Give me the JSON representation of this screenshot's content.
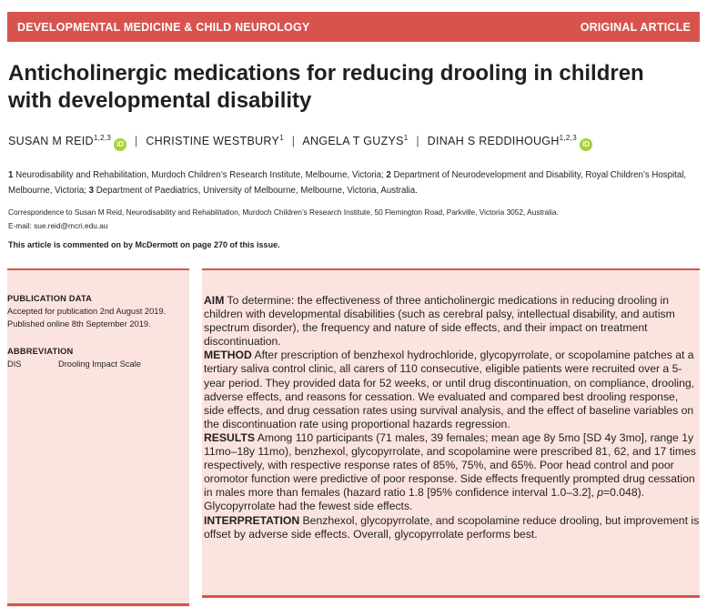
{
  "banner": {
    "journal": "DEVELOPMENTAL MEDICINE & CHILD NEUROLOGY",
    "article_type": "ORIGINAL ARTICLE"
  },
  "title": "Anticholinergic medications for reducing drooling in children with developmental disability",
  "authors": [
    {
      "name": "SUSAN M REID",
      "sup": "1,2,3",
      "orcid": true
    },
    {
      "name": "CHRISTINE WESTBURY",
      "sup": "1",
      "orcid": false
    },
    {
      "name": "ANGELA T GUZYS",
      "sup": "1",
      "orcid": false
    },
    {
      "name": "DINAH S REDDIHOUGH",
      "sup": "1,2,3",
      "orcid": true
    }
  ],
  "orcid_label": "iD",
  "affiliations": [
    {
      "num": "1",
      "text": " Neurodisability and Rehabilitation, Murdoch Children’s Research Institute, Melbourne, Victoria; "
    },
    {
      "num": "2",
      "text": " Department of Neurodevelopment and Disability, Royal Children’s Hospital, Melbourne, Victoria; "
    },
    {
      "num": "3",
      "text": " Department of Paediatrics, University of Melbourne, Melbourne, Victoria, Australia."
    }
  ],
  "correspondence": "Correspondence to Susan M Reid, Neurodisability and Rehabilitation, Murdoch Children’s Research Institute, 50 Flemington Road, Parkville, Victoria 3052, Australia.",
  "email": "E-mail: sue.reid@mcri.edu.au",
  "comment_note": "This article is commented on by McDermott on page 270 of this issue.",
  "sidebar": {
    "publication_heading": "PUBLICATION DATA",
    "accepted": "Accepted for publication 2nd August 2019.",
    "published": "Published online 8th September 2019.",
    "abbreviation_heading": "ABBREVIATION",
    "abbreviation_key": "DIS",
    "abbreviation_value": "Drooling Impact Scale"
  },
  "abstract": {
    "aim_label": "AIM",
    "aim": " To determine: the effectiveness of three anticholinergic medications in reducing drooling in children with developmental disabilities (such as cerebral palsy, intellectual disability, and autism spectrum disorder), the frequency and nature of side effects, and their impact on treatment discontinuation.",
    "method_label": "METHOD",
    "method": " After prescription of benzhexol hydrochloride, glycopyrrolate, or scopolamine patches at a tertiary saliva control clinic, all carers of 110 consecutive, eligible patients were recruited over a 5-year period. They provided data for 52 weeks, or until drug discontinuation, on compliance, drooling, adverse effects, and reasons for cessation. We evaluated and compared best drooling response, side effects, and drug cessation rates using survival analysis, and the effect of baseline variables on the discontinuation rate using proportional hazards regression.",
    "results_label": "RESULTS",
    "results_a": " Among 110 participants (71 males, 39 females; mean age 8y 5mo [SD 4y 3mo], range 1y 11mo–18y 11mo), benzhexol, glycopyrrolate, and scopolamine were prescribed 81, 62, and 17 times respectively, with respective response rates of 85%, 75%, and 65%. Poor head control and poor oromotor function were predictive of poor response. Side effects frequently prompted drug cessation in males more than females (hazard ratio 1.8 [95% confidence interval 1.0–3.2], ",
    "results_p": "p",
    "results_b": "=0.048). Glycopyrrolate had the fewest side effects.",
    "interpretation_label": "INTERPRETATION",
    "interpretation": " Benzhexol, glycopyrrolate, and scopolamine reduce drooling, but improvement is offset by adverse side effects. Overall, glycopyrrolate performs best."
  },
  "colors": {
    "accent": "#d9534e",
    "panel": "#fbe4df",
    "orcid": "#a6ce39"
  }
}
